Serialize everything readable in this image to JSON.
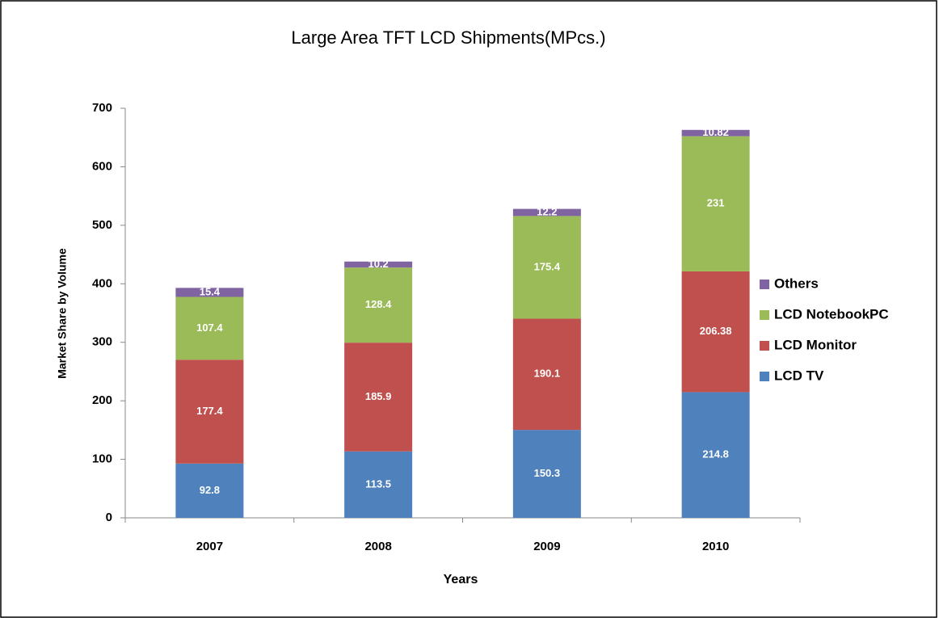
{
  "chart_data": {
    "type": "stacked_bar",
    "title": "Large Area TFT LCD Shipments(MPcs.)",
    "x_label": "Years",
    "y_label": "Market Share by Volume",
    "categories": [
      "2007",
      "2008",
      "2009",
      "2010"
    ],
    "series": [
      {
        "name": "LCD TV",
        "color": "#4f81bd",
        "values": [
          92.8,
          113.5,
          150.3,
          214.8
        ]
      },
      {
        "name": "LCD Monitor",
        "color": "#c0504d",
        "values": [
          177.4,
          185.9,
          190.1,
          206.38
        ]
      },
      {
        "name": "LCD NotebookPC",
        "color": "#9bbb59",
        "values": [
          107.4,
          128.4,
          175.4,
          231
        ]
      },
      {
        "name": "Others",
        "color": "#8064a2",
        "values": [
          15.4,
          10.2,
          12.2,
          10.82
        ]
      }
    ],
    "ylim": [
      0,
      700
    ],
    "yticks": [
      0,
      100,
      200,
      300,
      400,
      500,
      600,
      700
    ],
    "grid": false,
    "legend": "right"
  }
}
